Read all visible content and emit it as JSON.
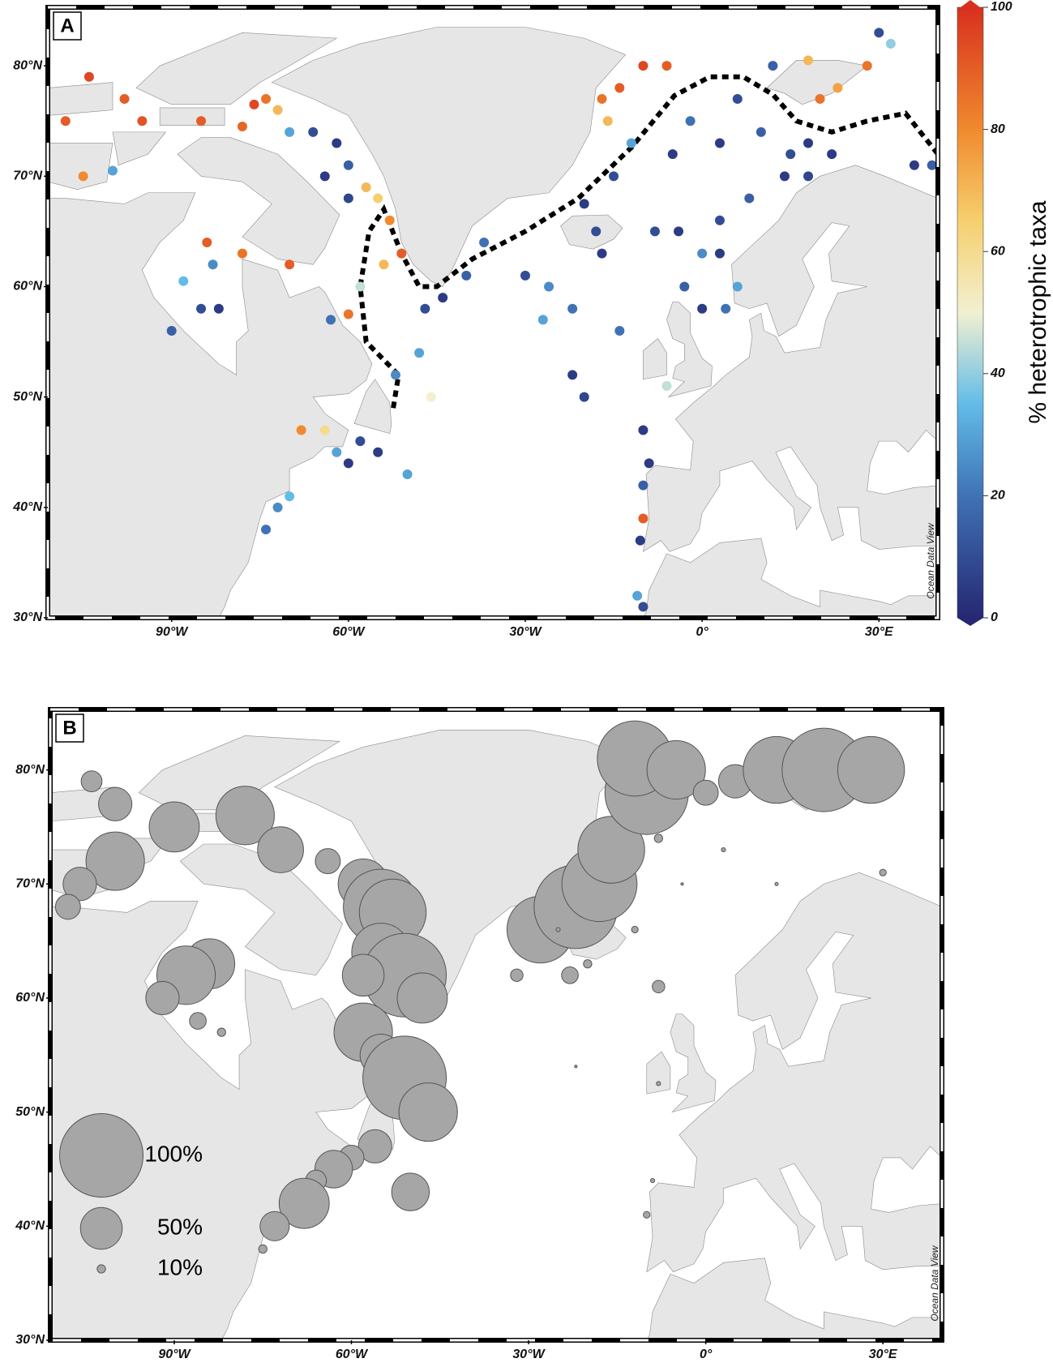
{
  "chart_data": [
    {
      "type": "scatter",
      "panel_label": "A",
      "watermark": "Ocean Data View",
      "xlim": [
        -111,
        40
      ],
      "ylim": [
        30,
        85.3
      ],
      "xticks": [
        {
          "value": -90,
          "label": "90°W"
        },
        {
          "value": -60,
          "label": "60°W"
        },
        {
          "value": -30,
          "label": "30°W"
        },
        {
          "value": 0,
          "label": "0°"
        },
        {
          "value": 30,
          "label": "30°E"
        }
      ],
      "yticks": [
        {
          "value": 30,
          "label": "30°N"
        },
        {
          "value": 40,
          "label": "40°N"
        },
        {
          "value": 50,
          "label": "50°N"
        },
        {
          "value": 60,
          "label": "60°N"
        },
        {
          "value": 70,
          "label": "70°N"
        },
        {
          "value": 80,
          "label": "80°N"
        }
      ],
      "colorbar": {
        "label": "% heterotrophic taxa",
        "lim": [
          0,
          100
        ],
        "ticks": [
          0,
          20,
          40,
          60,
          80,
          100
        ]
      },
      "x": [
        -104,
        -98,
        -95,
        -85,
        -76,
        -74,
        -72,
        -78,
        -70,
        -66,
        -62,
        -60,
        -64,
        -60,
        -57,
        -55,
        -53,
        -51,
        -54,
        -58,
        -60,
        -63,
        -70,
        -78,
        -84,
        -88,
        -85,
        -90,
        -82,
        -83,
        -108,
        -105,
        -100,
        -68,
        -64,
        -62,
        -58,
        -55,
        -60,
        -50,
        -70,
        -72,
        -74,
        -52,
        -48,
        -46,
        -47,
        -44,
        -40,
        -37,
        -30,
        -27,
        -22,
        -22,
        -20,
        -26,
        -17,
        -18,
        -20,
        -15,
        -12,
        -16,
        -17,
        -14,
        -10,
        -6,
        -5,
        -2,
        3,
        6,
        10,
        15,
        18,
        22,
        18,
        14,
        8,
        3,
        0,
        3,
        6,
        4,
        0,
        -10,
        -9,
        -10,
        -10,
        -10.5,
        -11,
        -10,
        -6,
        12,
        18,
        20,
        23,
        28,
        30,
        32,
        36,
        39,
        -8,
        -4,
        -14,
        -3
      ],
      "values": [
        79,
        77,
        75,
        75,
        76.5,
        77,
        76,
        74.5,
        74,
        74,
        73,
        71,
        70,
        68,
        69,
        68,
        66,
        63,
        62,
        60,
        57.5,
        57,
        62,
        63,
        64,
        60.5,
        58,
        56,
        58,
        62,
        75,
        70,
        70.5,
        47,
        47,
        45,
        46,
        45,
        44,
        43,
        41,
        40,
        38,
        52,
        54,
        50,
        58,
        59,
        61,
        64,
        61,
        57,
        58,
        52,
        50,
        60,
        63,
        65,
        67.5,
        70,
        73,
        75,
        77,
        78,
        80,
        80,
        72,
        75,
        73,
        77,
        74,
        72,
        73,
        72,
        70,
        70,
        68,
        66,
        63,
        63,
        60,
        58,
        58,
        47,
        44,
        42,
        39,
        37,
        32,
        31,
        51,
        80,
        80.5,
        77,
        78,
        80,
        83,
        82,
        71,
        71,
        65,
        65,
        56,
        60
      ],
      "color_values": [
        95,
        90,
        92,
        90,
        95,
        85,
        70,
        88,
        30,
        10,
        5,
        15,
        5,
        8,
        70,
        65,
        80,
        90,
        70,
        45,
        85,
        20,
        90,
        85,
        90,
        35,
        10,
        15,
        5,
        25,
        90,
        80,
        30,
        80,
        60,
        30,
        10,
        5,
        5,
        30,
        35,
        25,
        20,
        25,
        30,
        50,
        10,
        5,
        15,
        20,
        10,
        30,
        20,
        5,
        8,
        25,
        5,
        10,
        5,
        10,
        30,
        70,
        85,
        90,
        95,
        90,
        5,
        20,
        5,
        10,
        15,
        10,
        5,
        5,
        8,
        5,
        15,
        10,
        25,
        5,
        30,
        20,
        5,
        5,
        5,
        15,
        90,
        5,
        30,
        10,
        45,
        15,
        70,
        85,
        75,
        85,
        10,
        40,
        5,
        15,
        10,
        5,
        20,
        15
      ]
    },
    {
      "type": "bubble",
      "panel_label": "B",
      "watermark": "Ocean Data View",
      "xlim": [
        -111,
        40
      ],
      "ylim": [
        30,
        85.3
      ],
      "xticks": [
        {
          "value": -90,
          "label": "90°W"
        },
        {
          "value": -60,
          "label": "60°W"
        },
        {
          "value": -30,
          "label": "30°W"
        },
        {
          "value": 0,
          "label": "0°"
        },
        {
          "value": 30,
          "label": "30°E"
        }
      ],
      "yticks": [
        {
          "value": 30,
          "label": "30°N"
        },
        {
          "value": 40,
          "label": "40°N"
        },
        {
          "value": 50,
          "label": "50°N"
        },
        {
          "value": 60,
          "label": "60°N"
        },
        {
          "value": 70,
          "label": "70°N"
        },
        {
          "value": 80,
          "label": "80°N"
        }
      ],
      "size_legend": [
        {
          "value": 100,
          "label": "100%"
        },
        {
          "value": 50,
          "label": "50%"
        },
        {
          "value": 10,
          "label": "10%"
        }
      ],
      "x": [
        -104,
        -100,
        -90,
        -78,
        -72,
        -64,
        -58,
        -55,
        -53,
        -55,
        -51,
        -48,
        -58,
        -58,
        -55,
        -51,
        -47,
        -56,
        -60,
        -63,
        -66,
        -68,
        -73,
        -75,
        -50,
        -84,
        -88,
        -92,
        -86,
        -82,
        -100,
        -106,
        -108,
        -28,
        -22,
        -18,
        -16,
        -10,
        -12,
        -5,
        0,
        5,
        12,
        20,
        28,
        -8,
        3,
        -25,
        -20,
        -12,
        -32,
        -23,
        -8,
        -22,
        -9,
        -10,
        -8,
        30,
        12,
        -4
      ],
      "values": [
        79,
        77,
        75,
        76,
        73,
        72,
        70,
        68,
        67.5,
        64,
        62,
        60,
        62,
        57,
        55,
        53,
        50,
        47,
        46,
        45,
        44,
        42,
        40,
        38,
        43,
        63,
        62,
        60,
        58,
        57,
        72,
        70,
        68,
        66,
        68,
        70,
        73,
        78,
        81,
        80,
        78,
        79,
        80,
        80,
        80,
        74,
        73,
        66,
        63,
        66,
        62,
        62,
        61,
        54,
        44,
        41,
        52.5,
        71,
        70,
        70
      ],
      "sizes": [
        25,
        40,
        60,
        70,
        55,
        30,
        60,
        90,
        80,
        70,
        100,
        60,
        50,
        70,
        50,
        100,
        70,
        40,
        30,
        45,
        25,
        60,
        35,
        10,
        45,
        60,
        70,
        40,
        20,
        10,
        70,
        40,
        30,
        80,
        100,
        90,
        80,
        100,
        90,
        70,
        30,
        40,
        80,
        100,
        80,
        10,
        5,
        5,
        10,
        8,
        15,
        20,
        15,
        3,
        5,
        8,
        5,
        8,
        4,
        3
      ]
    }
  ]
}
